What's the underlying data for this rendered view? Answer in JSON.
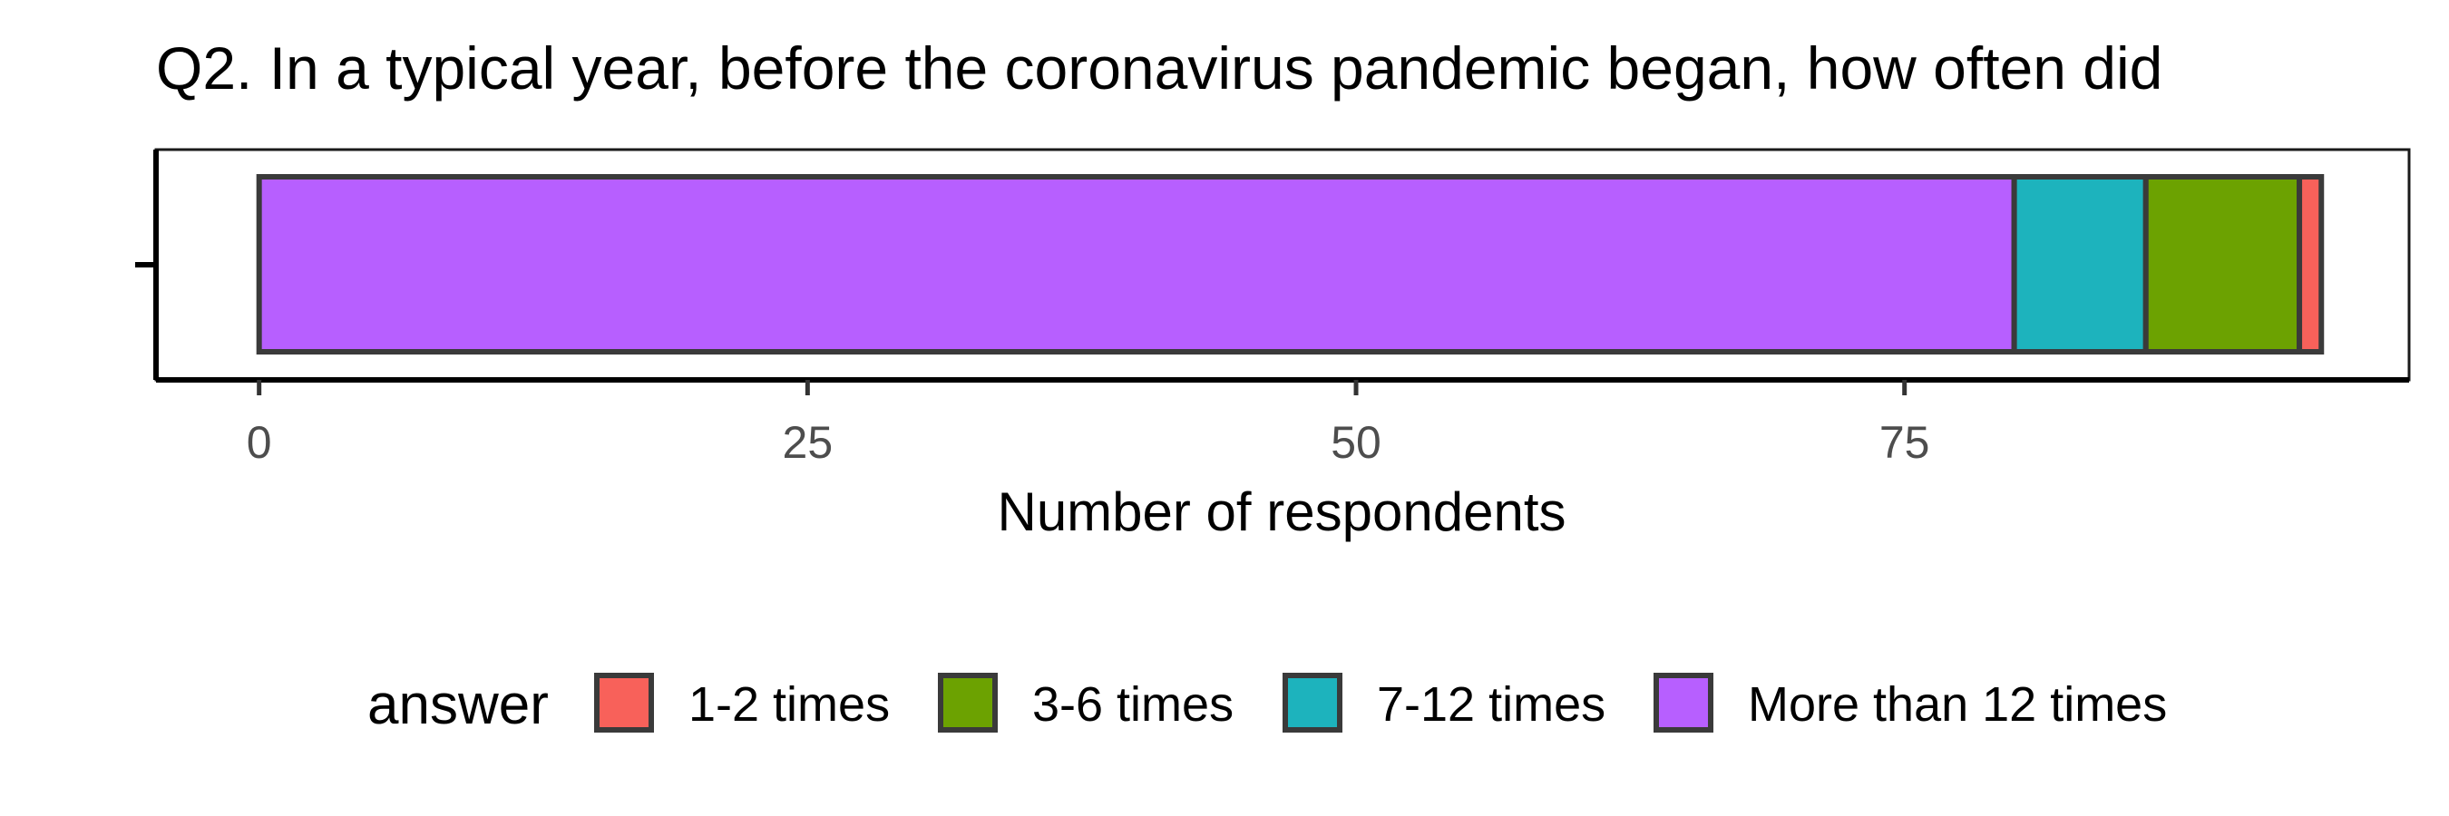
{
  "chart_data": {
    "type": "bar",
    "orientation": "horizontal",
    "stacked": true,
    "title": "Q2. In a typical year, before the coronavirus pandemic began, how often did",
    "xlabel": "Number of respondents",
    "ylabel": "",
    "xlim": [
      -4.7,
      98
    ],
    "x_ticks": [
      0,
      25,
      50,
      75
    ],
    "x_tick_labels": [
      "0",
      "25",
      "50",
      "75"
    ],
    "grid": false,
    "legend_title": "answer",
    "legend_position": "bottom",
    "series": [
      {
        "name": "More than 12 times",
        "value": 80,
        "color": "#B75FFF"
      },
      {
        "name": "7-12 times",
        "value": 6,
        "color": "#1DB3BD"
      },
      {
        "name": "3-6 times",
        "value": 7,
        "color": "#6CA201"
      },
      {
        "name": "1-2 times",
        "value": 1,
        "color": "#F8615A"
      }
    ],
    "legend_order": [
      "1-2 times",
      "3-6 times",
      "7-12 times",
      "More than 12 times"
    ]
  }
}
